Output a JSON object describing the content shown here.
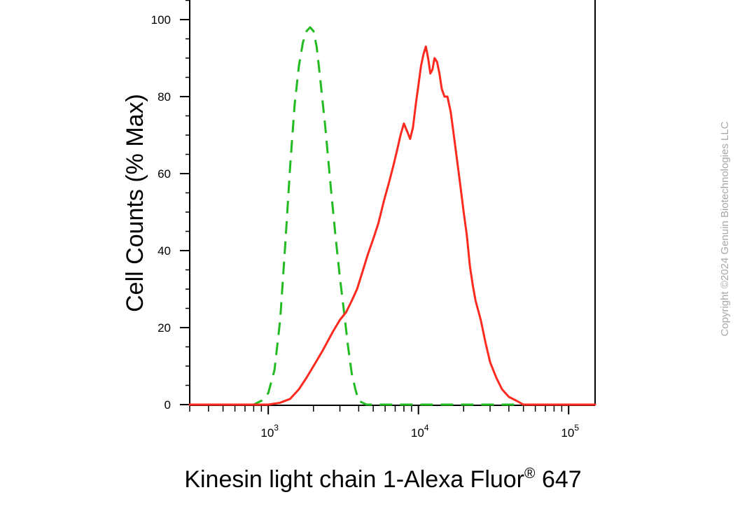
{
  "chart_data": {
    "type": "line",
    "xlabel": "Kinesin light chain 1-Alexa Fluor",
    "xlabel_superscript": "®",
    "xlabel_suffix": " 647",
    "ylabel": "Cell Counts (% Max)",
    "x_scale": "log",
    "xlim": [
      300,
      150000
    ],
    "ylim": [
      0,
      100
    ],
    "y_ticks": [
      0,
      20,
      40,
      60,
      80,
      100
    ],
    "y_tick_labels": [
      "0",
      "20",
      "40",
      "60",
      "80",
      "100"
    ],
    "x_major_ticks": [
      1000,
      10000,
      100000
    ],
    "x_tick_labels": [
      {
        "base": "10",
        "exp": "3"
      },
      {
        "base": "10",
        "exp": "4"
      },
      {
        "base": "10",
        "exp": "5"
      }
    ],
    "grid": false,
    "legend": "none",
    "series": [
      {
        "color": "#22bb22",
        "style": "dashed",
        "points": [
          [
            300,
            0
          ],
          [
            700,
            0
          ],
          [
            800,
            0
          ],
          [
            900,
            1
          ],
          [
            1000,
            3
          ],
          [
            1100,
            9
          ],
          [
            1200,
            22
          ],
          [
            1300,
            42
          ],
          [
            1400,
            62
          ],
          [
            1500,
            78
          ],
          [
            1600,
            88
          ],
          [
            1700,
            94
          ],
          [
            1800,
            97
          ],
          [
            1900,
            98
          ],
          [
            2000,
            97
          ],
          [
            2100,
            93
          ],
          [
            2200,
            86
          ],
          [
            2400,
            72
          ],
          [
            2600,
            57
          ],
          [
            2800,
            44
          ],
          [
            3000,
            33
          ],
          [
            3200,
            24
          ],
          [
            3400,
            15
          ],
          [
            3600,
            8
          ],
          [
            3800,
            4
          ],
          [
            4000,
            1
          ],
          [
            4500,
            0
          ],
          [
            150000,
            0
          ]
        ]
      },
      {
        "color": "#ff2a1f",
        "style": "solid",
        "points": [
          [
            300,
            0
          ],
          [
            900,
            0
          ],
          [
            1000,
            0
          ],
          [
            1200,
            0.5
          ],
          [
            1400,
            1.5
          ],
          [
            1600,
            4
          ],
          [
            1800,
            7
          ],
          [
            2000,
            10
          ],
          [
            2300,
            14
          ],
          [
            2700,
            19
          ],
          [
            3000,
            22
          ],
          [
            3300,
            24
          ],
          [
            3600,
            27
          ],
          [
            3900,
            30
          ],
          [
            4200,
            34
          ],
          [
            4600,
            39
          ],
          [
            5000,
            43
          ],
          [
            5400,
            47
          ],
          [
            5900,
            53
          ],
          [
            6400,
            58
          ],
          [
            6800,
            62
          ],
          [
            7200,
            66
          ],
          [
            7600,
            70
          ],
          [
            8000,
            73
          ],
          [
            8400,
            71
          ],
          [
            8800,
            69
          ],
          [
            9200,
            72
          ],
          [
            9600,
            78
          ],
          [
            10000,
            83
          ],
          [
            10400,
            88
          ],
          [
            10800,
            91
          ],
          [
            11200,
            93
          ],
          [
            11600,
            90
          ],
          [
            12000,
            86
          ],
          [
            12400,
            87
          ],
          [
            12800,
            90
          ],
          [
            13300,
            89
          ],
          [
            13800,
            86
          ],
          [
            14300,
            82
          ],
          [
            14900,
            80
          ],
          [
            15600,
            80
          ],
          [
            16400,
            76
          ],
          [
            17200,
            70
          ],
          [
            18000,
            64
          ],
          [
            19000,
            57
          ],
          [
            20000,
            50
          ],
          [
            21000,
            44
          ],
          [
            22000,
            36
          ],
          [
            23000,
            31
          ],
          [
            24000,
            27
          ],
          [
            26000,
            22
          ],
          [
            28000,
            16
          ],
          [
            30000,
            11
          ],
          [
            33000,
            7
          ],
          [
            36000,
            4
          ],
          [
            40000,
            2
          ],
          [
            45000,
            1
          ],
          [
            50000,
            0
          ],
          [
            150000,
            0
          ]
        ]
      }
    ]
  },
  "copyright": "Copyright ©2024 Genuin Biotechnologies LLC"
}
